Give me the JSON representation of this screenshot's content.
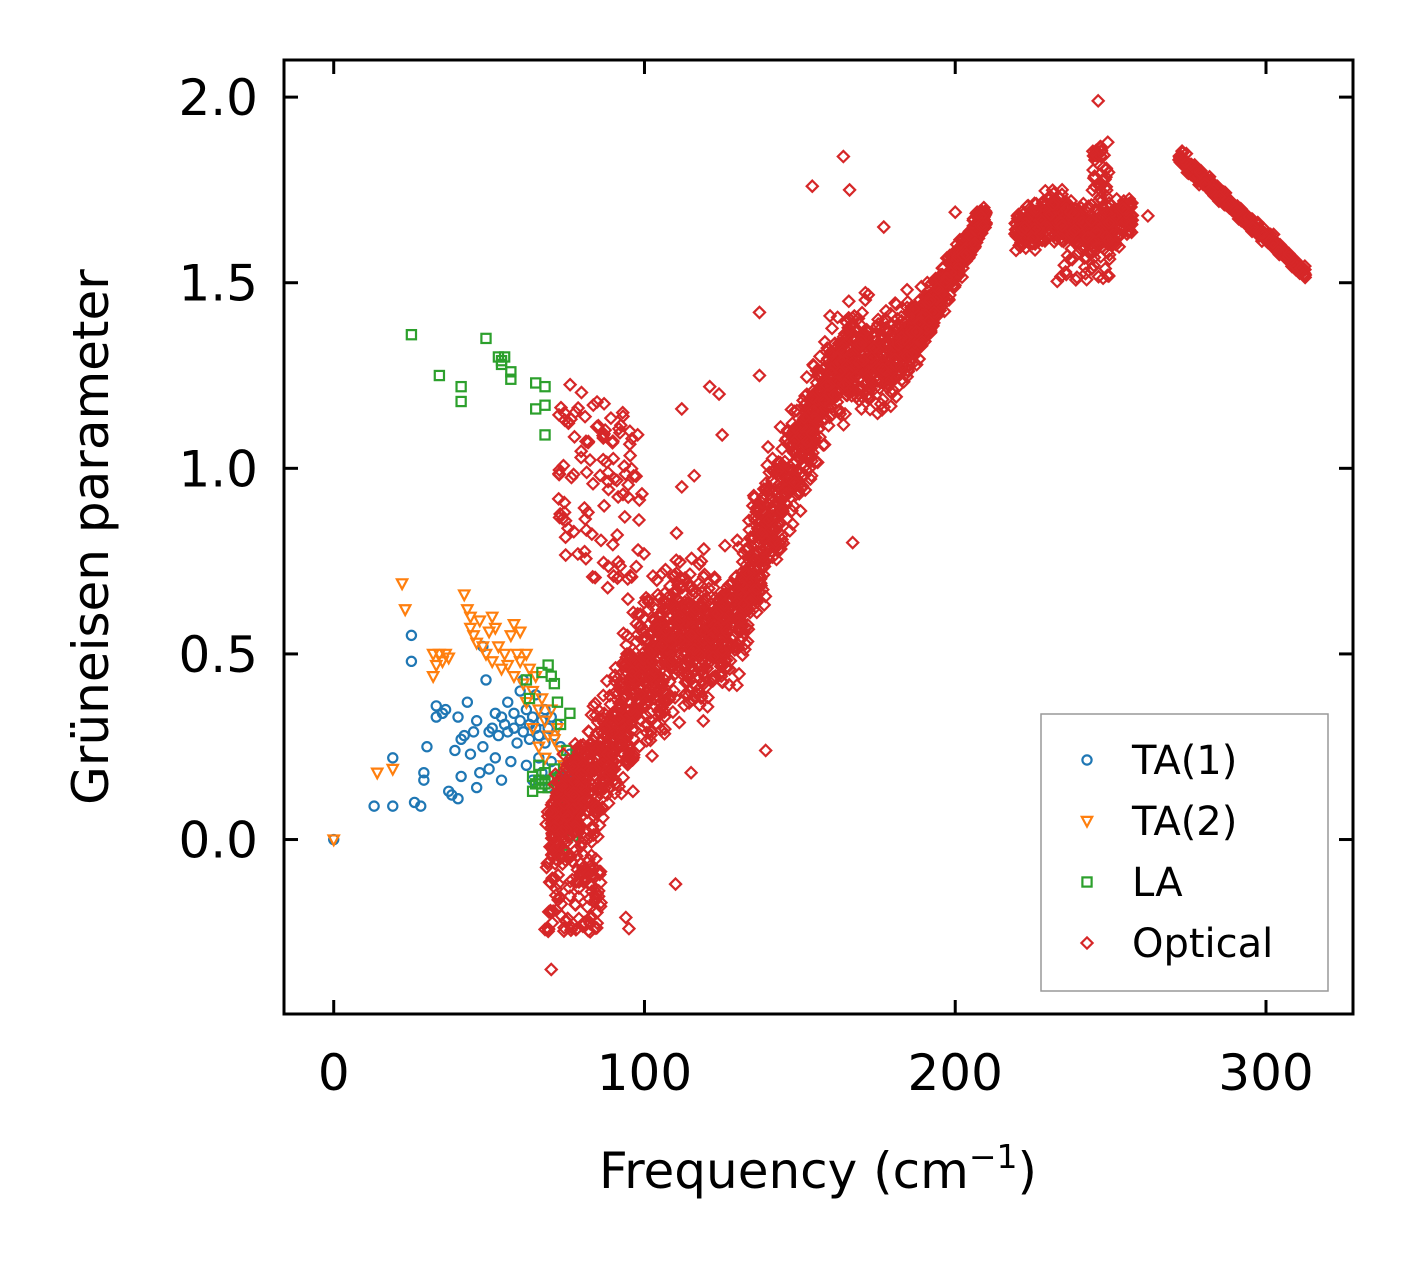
{
  "chart_data": {
    "type": "scatter",
    "title": "",
    "xlabel": "Frequency (cm",
    "xlabel_sup": "−1",
    "xlabel_close": ")",
    "ylabel": "Grüneisen parameter",
    "xlim": [
      -16,
      328
    ],
    "ylim": [
      -0.47,
      2.1
    ],
    "xticks": [
      0,
      100,
      200,
      300
    ],
    "xtick_labels": [
      "0",
      "100",
      "200",
      "300"
    ],
    "yticks": [
      0.0,
      0.5,
      1.0,
      1.5,
      2.0
    ],
    "ytick_labels": [
      "0.0",
      "0.5",
      "1.0",
      "1.5",
      "2.0"
    ],
    "grid": false,
    "legend_position": "lower-right",
    "series": [
      {
        "name": "TA(1)",
        "marker": "circle",
        "color": "#1f77b4",
        "points": [
          [
            0,
            0
          ],
          [
            13,
            0.09
          ],
          [
            19,
            0.09
          ],
          [
            19,
            0.22
          ],
          [
            25,
            0.55
          ],
          [
            25,
            0.48
          ],
          [
            26,
            0.1
          ],
          [
            28,
            0.09
          ],
          [
            29,
            0.18
          ],
          [
            29,
            0.16
          ],
          [
            30,
            0.25
          ],
          [
            33,
            0.33
          ],
          [
            33,
            0.36
          ],
          [
            35,
            0.34
          ],
          [
            36,
            0.35
          ],
          [
            37,
            0.13
          ],
          [
            38,
            0.12
          ],
          [
            39,
            0.24
          ],
          [
            40,
            0.11
          ],
          [
            40,
            0.33
          ],
          [
            41,
            0.27
          ],
          [
            41,
            0.17
          ],
          [
            42,
            0.28
          ],
          [
            43,
            0.37
          ],
          [
            44,
            0.23
          ],
          [
            45,
            0.29
          ],
          [
            46,
            0.14
          ],
          [
            46,
            0.32
          ],
          [
            47,
            0.18
          ],
          [
            48,
            0.52
          ],
          [
            48,
            0.25
          ],
          [
            49,
            0.43
          ],
          [
            50,
            0.29
          ],
          [
            50,
            0.19
          ],
          [
            51,
            0.3
          ],
          [
            52,
            0.34
          ],
          [
            52,
            0.22
          ],
          [
            53,
            0.28
          ],
          [
            54,
            0.16
          ],
          [
            54,
            0.33
          ],
          [
            55,
            0.31
          ],
          [
            56,
            0.29
          ],
          [
            56,
            0.37
          ],
          [
            57,
            0.21
          ],
          [
            58,
            0.3
          ],
          [
            58,
            0.34
          ],
          [
            59,
            0.26
          ],
          [
            60,
            0.32
          ],
          [
            60,
            0.4
          ],
          [
            61,
            0.29
          ],
          [
            61,
            0.43
          ],
          [
            62,
            0.35
          ],
          [
            62,
            0.2
          ],
          [
            63,
            0.31
          ],
          [
            63,
            0.27
          ],
          [
            64,
            0.33
          ],
          [
            64,
            0.16
          ],
          [
            65,
            0.3
          ],
          [
            65,
            0.39
          ],
          [
            66,
            0.28
          ],
          [
            66,
            0.22
          ],
          [
            67,
            0.32
          ],
          [
            67,
            0.18
          ],
          [
            68,
            0.35
          ],
          [
            68,
            0.26
          ],
          [
            69,
            0.3
          ],
          [
            69,
            0.14
          ],
          [
            70,
            0.33
          ],
          [
            70,
            0.21
          ],
          [
            71,
            0.28
          ],
          [
            72,
            0.31
          ],
          [
            72,
            0.17
          ],
          [
            73,
            0.25
          ],
          [
            74,
            0.2
          ],
          [
            75,
            0.17
          ],
          [
            76,
            0.23
          ]
        ]
      },
      {
        "name": "TA(2)",
        "marker": "triangle-down",
        "color": "#ff7f0e",
        "points": [
          [
            0,
            0
          ],
          [
            14,
            0.18
          ],
          [
            19,
            0.19
          ],
          [
            22,
            0.69
          ],
          [
            23,
            0.62
          ],
          [
            32,
            0.44
          ],
          [
            32,
            0.5
          ],
          [
            33,
            0.47
          ],
          [
            34,
            0.5
          ],
          [
            35,
            0.48
          ],
          [
            36,
            0.5
          ],
          [
            37,
            0.49
          ],
          [
            42,
            0.66
          ],
          [
            43,
            0.62
          ],
          [
            44,
            0.6
          ],
          [
            44,
            0.57
          ],
          [
            45,
            0.55
          ],
          [
            46,
            0.53
          ],
          [
            47,
            0.59
          ],
          [
            48,
            0.52
          ],
          [
            49,
            0.5
          ],
          [
            50,
            0.56
          ],
          [
            51,
            0.6
          ],
          [
            51,
            0.48
          ],
          [
            52,
            0.57
          ],
          [
            53,
            0.52
          ],
          [
            54,
            0.46
          ],
          [
            55,
            0.5
          ],
          [
            56,
            0.47
          ],
          [
            57,
            0.55
          ],
          [
            58,
            0.58
          ],
          [
            58,
            0.44
          ],
          [
            59,
            0.5
          ],
          [
            60,
            0.48
          ],
          [
            60,
            0.56
          ],
          [
            61,
            0.42
          ],
          [
            62,
            0.5
          ],
          [
            62,
            0.37
          ],
          [
            63,
            0.46
          ],
          [
            64,
            0.4
          ],
          [
            64,
            0.3
          ],
          [
            65,
            0.44
          ],
          [
            66,
            0.35
          ],
          [
            66,
            0.25
          ],
          [
            67,
            0.38
          ],
          [
            68,
            0.32
          ],
          [
            68,
            0.22
          ],
          [
            69,
            0.28
          ],
          [
            70,
            0.35
          ],
          [
            71,
            0.27
          ],
          [
            72,
            0.3
          ],
          [
            73,
            0.24
          ],
          [
            74,
            0.2
          ]
        ]
      },
      {
        "name": "LA",
        "marker": "square",
        "color": "#2ca02c",
        "points": [
          [
            25,
            1.36
          ],
          [
            34,
            1.25
          ],
          [
            41,
            1.22
          ],
          [
            41,
            1.18
          ],
          [
            49,
            1.35
          ],
          [
            53,
            1.3
          ],
          [
            54,
            1.29
          ],
          [
            54,
            1.28
          ],
          [
            55,
            1.3
          ],
          [
            57,
            1.26
          ],
          [
            57,
            1.24
          ],
          [
            65,
            1.23
          ],
          [
            65,
            1.16
          ],
          [
            68,
            1.22
          ],
          [
            68,
            1.17
          ],
          [
            68,
            1.09
          ],
          [
            62,
            0.43
          ],
          [
            63,
            0.38
          ],
          [
            64,
            0.17
          ],
          [
            64,
            0.13
          ],
          [
            65,
            0.15
          ],
          [
            66,
            0.2
          ],
          [
            66,
            0.16
          ],
          [
            67,
            0.14
          ],
          [
            67,
            0.45
          ],
          [
            68,
            0.18
          ],
          [
            68,
            0.15
          ],
          [
            69,
            0.47
          ],
          [
            69,
            0.14
          ],
          [
            70,
            0.44
          ],
          [
            70,
            0.16
          ],
          [
            71,
            0.42
          ],
          [
            71,
            0.19
          ],
          [
            72,
            0.15
          ],
          [
            72,
            0.37
          ],
          [
            73,
            0.31
          ],
          [
            73,
            0.17
          ],
          [
            74,
            -0.04
          ],
          [
            75,
            0.24
          ],
          [
            75,
            0.11
          ],
          [
            76,
            0.06
          ],
          [
            76,
            0.34
          ],
          [
            77,
            0.01
          ]
        ]
      },
      {
        "name": "Optical",
        "marker": "diamond",
        "color": "#d62728",
        "generated": true,
        "points": [
          [
            246,
            1.99
          ],
          [
            164,
            1.84
          ],
          [
            154,
            1.76
          ],
          [
            166,
            1.75
          ],
          [
            177,
            1.65
          ],
          [
            137,
            1.42
          ],
          [
            121,
            1.22
          ],
          [
            137,
            1.25
          ],
          [
            70,
            -0.35
          ],
          [
            94,
            -0.21
          ],
          [
            95,
            -0.24
          ],
          [
            110,
            -0.12
          ],
          [
            86,
            -0.17
          ],
          [
            167,
            0.8
          ],
          [
            139,
            0.24
          ],
          [
            115,
            0.18
          ],
          [
            93,
            1.15
          ],
          [
            96,
            1.08
          ],
          [
            112,
            1.16
          ],
          [
            124,
            1.2
          ],
          [
            125,
            1.09
          ],
          [
            112,
            0.95
          ],
          [
            116,
            0.98
          ],
          [
            200,
            1.69
          ],
          [
            220,
            1.68
          ],
          [
            262,
            1.68
          ],
          [
            312,
            1.52
          ]
        ]
      }
    ]
  }
}
